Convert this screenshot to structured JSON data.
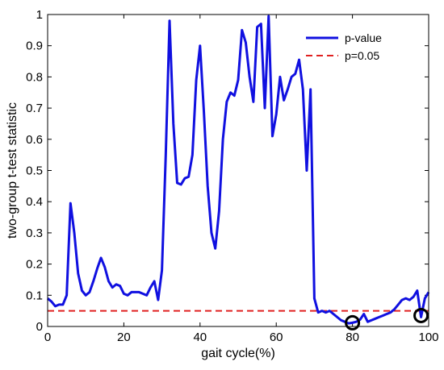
{
  "chart_data": {
    "type": "line",
    "title": "",
    "xlabel": "gait cycle(%)",
    "ylabel": "two-group t-test statistic",
    "xlim": [
      0,
      100
    ],
    "ylim": [
      0,
      1
    ],
    "xticks": [
      "0",
      "20",
      "40",
      "60",
      "80",
      "100"
    ],
    "yticks": [
      "0",
      "0.1",
      "0.2",
      "0.3",
      "0.4",
      "0.5",
      "0.6",
      "0.7",
      "0.8",
      "0.9",
      "1"
    ],
    "grid": false,
    "legend_position": "top-right",
    "series": [
      {
        "name": "p-value",
        "color": "#1010e0",
        "style": "solid",
        "points": [
          [
            0,
            0.09
          ],
          [
            1,
            0.08
          ],
          [
            2,
            0.065
          ],
          [
            3,
            0.07
          ],
          [
            4,
            0.07
          ],
          [
            5,
            0.1
          ],
          [
            6,
            0.395
          ],
          [
            7,
            0.3
          ],
          [
            8,
            0.17
          ],
          [
            9,
            0.115
          ],
          [
            10,
            0.1
          ],
          [
            11,
            0.11
          ],
          [
            12,
            0.145
          ],
          [
            13,
            0.185
          ],
          [
            14,
            0.22
          ],
          [
            15,
            0.19
          ],
          [
            16,
            0.145
          ],
          [
            17,
            0.125
          ],
          [
            18,
            0.135
          ],
          [
            19,
            0.13
          ],
          [
            20,
            0.105
          ],
          [
            21,
            0.1
          ],
          [
            22,
            0.11
          ],
          [
            23,
            0.11
          ],
          [
            24,
            0.11
          ],
          [
            25,
            0.105
          ],
          [
            26,
            0.1
          ],
          [
            27,
            0.125
          ],
          [
            28,
            0.145
          ],
          [
            29,
            0.085
          ],
          [
            30,
            0.18
          ],
          [
            31,
            0.55
          ],
          [
            32,
            0.98
          ],
          [
            33,
            0.65
          ],
          [
            34,
            0.46
          ],
          [
            35,
            0.455
          ],
          [
            36,
            0.475
          ],
          [
            37,
            0.48
          ],
          [
            38,
            0.55
          ],
          [
            39,
            0.79
          ],
          [
            40,
            0.9
          ],
          [
            41,
            0.69
          ],
          [
            42,
            0.45
          ],
          [
            43,
            0.3
          ],
          [
            44,
            0.25
          ],
          [
            45,
            0.37
          ],
          [
            46,
            0.6
          ],
          [
            47,
            0.72
          ],
          [
            48,
            0.75
          ],
          [
            49,
            0.74
          ],
          [
            50,
            0.79
          ],
          [
            51,
            0.95
          ],
          [
            52,
            0.91
          ],
          [
            53,
            0.8
          ],
          [
            54,
            0.72
          ],
          [
            55,
            0.96
          ],
          [
            56,
            0.97
          ],
          [
            57,
            0.7
          ],
          [
            58,
            0.995
          ],
          [
            59,
            0.61
          ],
          [
            60,
            0.68
          ],
          [
            61,
            0.8
          ],
          [
            62,
            0.725
          ],
          [
            63,
            0.76
          ],
          [
            64,
            0.8
          ],
          [
            65,
            0.81
          ],
          [
            66,
            0.855
          ],
          [
            67,
            0.76
          ],
          [
            68,
            0.5
          ],
          [
            69,
            0.76
          ],
          [
            70,
            0.09
          ],
          [
            71,
            0.045
          ],
          [
            72,
            0.05
          ],
          [
            73,
            0.045
          ],
          [
            74,
            0.05
          ],
          [
            75,
            0.04
          ],
          [
            76,
            0.03
          ],
          [
            77,
            0.02
          ],
          [
            78,
            0.015
          ],
          [
            79,
            0.01
          ],
          [
            80,
            0.012
          ],
          [
            81,
            0.015
          ],
          [
            82,
            0.022
          ],
          [
            83,
            0.04
          ],
          [
            84,
            0.015
          ],
          [
            85,
            0.02
          ],
          [
            86,
            0.025
          ],
          [
            87,
            0.03
          ],
          [
            88,
            0.035
          ],
          [
            89,
            0.04
          ],
          [
            90,
            0.045
          ],
          [
            91,
            0.055
          ],
          [
            92,
            0.07
          ],
          [
            93,
            0.085
          ],
          [
            94,
            0.09
          ],
          [
            95,
            0.085
          ],
          [
            96,
            0.095
          ],
          [
            97,
            0.115
          ],
          [
            98,
            0.03
          ],
          [
            99,
            0.09
          ],
          [
            100,
            0.11
          ]
        ]
      },
      {
        "name": "p=0.05",
        "color": "#e02020",
        "style": "dashed",
        "points": [
          [
            0,
            0.05
          ],
          [
            100,
            0.05
          ]
        ]
      }
    ],
    "markers": [
      {
        "type": "circle",
        "x": 80,
        "y": 0.012,
        "color": "#000000"
      },
      {
        "type": "circle",
        "x": 98,
        "y": 0.035,
        "color": "#000000"
      }
    ]
  }
}
